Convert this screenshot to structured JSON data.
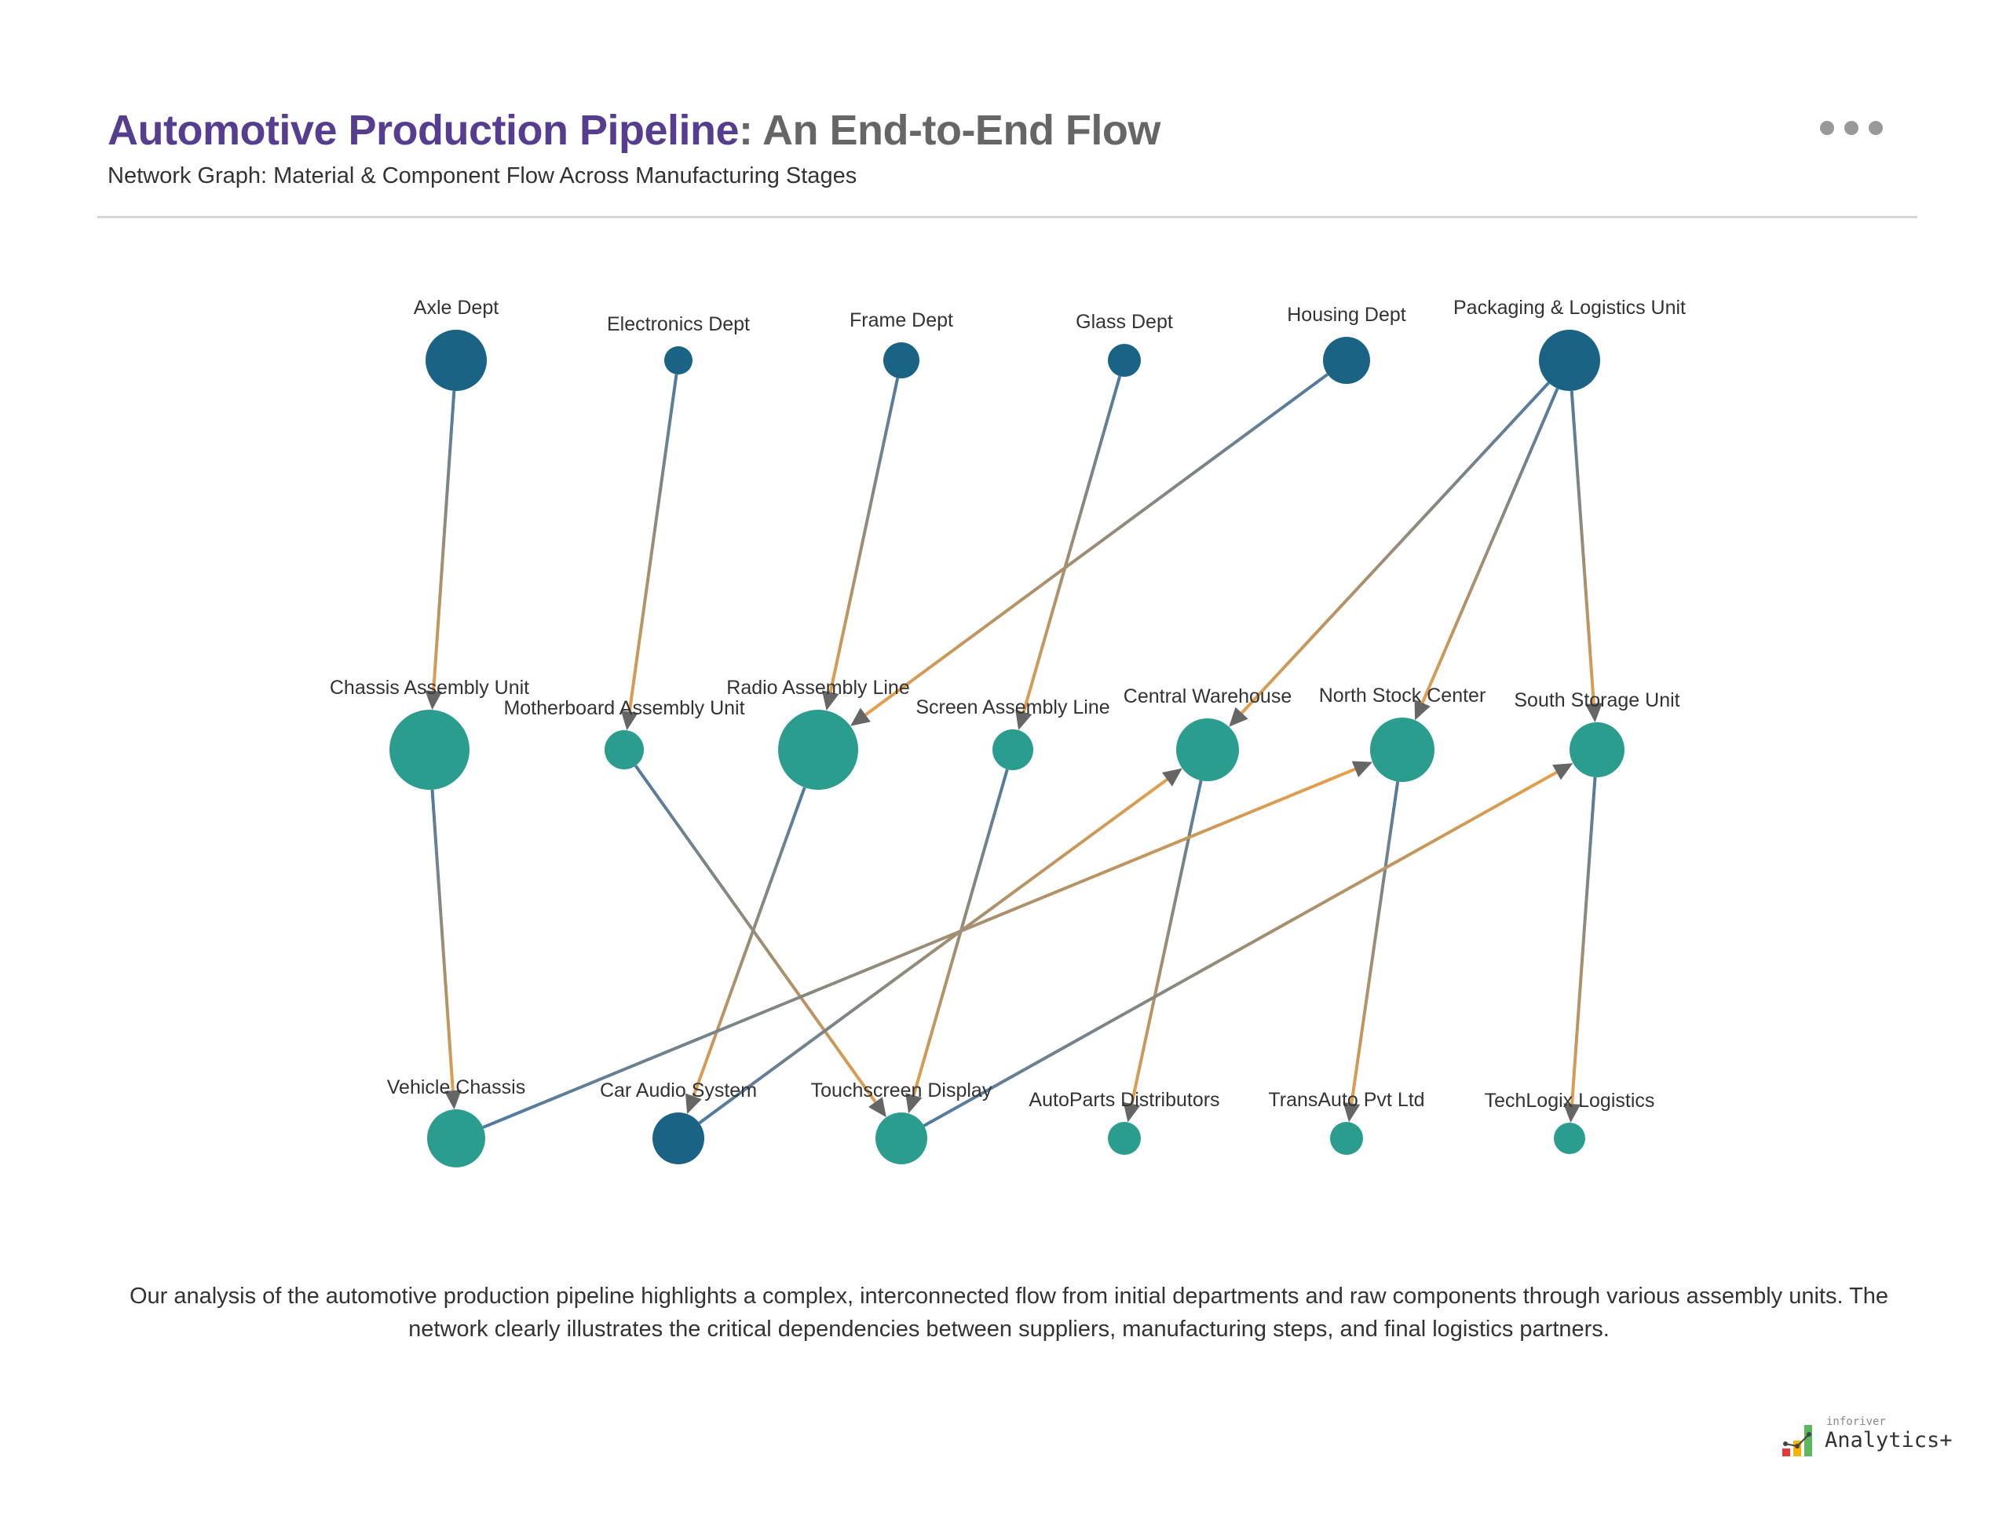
{
  "header": {
    "title_main": "Automotive Production Pipeline",
    "title_rest": ": An End-to-End Flow",
    "subtitle": "Network Graph: Material & Component Flow Across Manufacturing Stages",
    "more_icon": "ellipsis-icon"
  },
  "colors": {
    "title_accent": "#563d8f",
    "node_dark": "#1a6385",
    "node_teal": "#2a9d8f",
    "edge_source": "#4f7aa0",
    "edge_target": "#eaa048",
    "arrow": "#666666"
  },
  "diagram": {
    "nodes": [
      {
        "id": "axle",
        "label": "Axle Dept",
        "tier": 1,
        "color": "#1a6385"
      },
      {
        "id": "electronics",
        "label": "Electronics Dept",
        "tier": 1,
        "color": "#1a6385"
      },
      {
        "id": "frame",
        "label": "Frame Dept",
        "tier": 1,
        "color": "#1a6385"
      },
      {
        "id": "glass",
        "label": "Glass Dept",
        "tier": 1,
        "color": "#1a6385"
      },
      {
        "id": "housing",
        "label": "Housing Dept",
        "tier": 1,
        "color": "#1a6385"
      },
      {
        "id": "packaging",
        "label": "Packaging & Logistics Unit",
        "tier": 1,
        "color": "#1a6385"
      },
      {
        "id": "chassis",
        "label": "Chassis Assembly Unit",
        "tier": 2,
        "color": "#2a9d8f"
      },
      {
        "id": "motherboard",
        "label": "Motherboard Assembly Unit",
        "tier": 2,
        "color": "#2a9d8f"
      },
      {
        "id": "radio",
        "label": "Radio Assembly Line",
        "tier": 2,
        "color": "#2a9d8f"
      },
      {
        "id": "screen",
        "label": "Screen Assembly Line",
        "tier": 2,
        "color": "#2a9d8f"
      },
      {
        "id": "central",
        "label": "Central Warehouse",
        "tier": 2,
        "color": "#2a9d8f"
      },
      {
        "id": "north",
        "label": "North Stock Center",
        "tier": 2,
        "color": "#2a9d8f"
      },
      {
        "id": "south",
        "label": "South Storage Unit",
        "tier": 2,
        "color": "#2a9d8f"
      },
      {
        "id": "vehicle",
        "label": "Vehicle Chassis",
        "tier": 3,
        "color": "#2a9d8f"
      },
      {
        "id": "caraudio",
        "label": "Car Audio System",
        "tier": 3,
        "color": "#1a6385"
      },
      {
        "id": "touchscreen",
        "label": "Touchscreen Display",
        "tier": 3,
        "color": "#2a9d8f"
      },
      {
        "id": "autoparts",
        "label": "AutoParts Distributors",
        "tier": 3,
        "color": "#2a9d8f"
      },
      {
        "id": "transauto",
        "label": "TransAuto Pvt Ltd",
        "tier": 3,
        "color": "#2a9d8f"
      },
      {
        "id": "techlogix",
        "label": "TechLogix Logistics",
        "tier": 3,
        "color": "#2a9d8f"
      }
    ],
    "edges": [
      {
        "from": "axle",
        "to": "chassis"
      },
      {
        "from": "electronics",
        "to": "motherboard"
      },
      {
        "from": "frame",
        "to": "radio"
      },
      {
        "from": "glass",
        "to": "screen"
      },
      {
        "from": "housing",
        "to": "radio"
      },
      {
        "from": "packaging",
        "to": "central"
      },
      {
        "from": "packaging",
        "to": "north"
      },
      {
        "from": "packaging",
        "to": "south"
      },
      {
        "from": "chassis",
        "to": "vehicle"
      },
      {
        "from": "motherboard",
        "to": "touchscreen"
      },
      {
        "from": "radio",
        "to": "caraudio"
      },
      {
        "from": "screen",
        "to": "touchscreen"
      },
      {
        "from": "central",
        "to": "autoparts"
      },
      {
        "from": "north",
        "to": "transauto"
      },
      {
        "from": "south",
        "to": "techlogix"
      },
      {
        "from": "vehicle",
        "to": "north"
      },
      {
        "from": "caraudio",
        "to": "central"
      },
      {
        "from": "touchscreen",
        "to": "south"
      }
    ]
  },
  "description": "Our analysis of the automotive production pipeline highlights a complex, interconnected flow from initial departments and raw components through various assembly units. The network clearly illustrates the critical dependencies between suppliers, manufacturing steps, and final logistics partners.",
  "logo": {
    "small": "inforiver",
    "big": "Analytics+"
  }
}
